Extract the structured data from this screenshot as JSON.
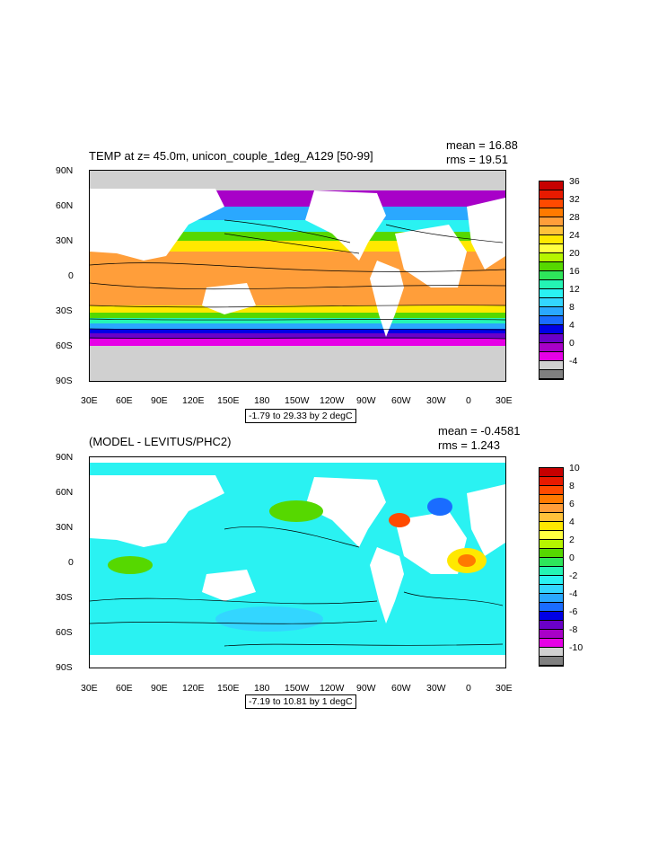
{
  "panels": [
    {
      "id": "temp",
      "title": "TEMP at z=  45.0m, unicon_couple_1deg_A129 [50-99]",
      "mean": "mean = 16.88",
      "rms": "rms = 19.51",
      "info": "-1.79 to 29.33 by 2 degC",
      "colorbar": {
        "labels": [
          "36",
          "32",
          "28",
          "24",
          "20",
          "16",
          "12",
          "8",
          "4",
          "0",
          "-4"
        ],
        "colors": [
          "#c70000",
          "#e81a00",
          "#ff4a00",
          "#ff7a00",
          "#ff9e3a",
          "#ffc23a",
          "#ffe800",
          "#ffff40",
          "#b6f500",
          "#56d800",
          "#2ee65a",
          "#24f5b4",
          "#2af2f2",
          "#33d6ff",
          "#2aa8ff",
          "#1a6cff",
          "#0000e6",
          "#6a00c8",
          "#a800c8",
          "#e600e6",
          "#d0d0d0",
          "#808080"
        ]
      },
      "icons": [
        "map-land-mask",
        "contour-lines"
      ]
    },
    {
      "id": "diff",
      "title": "(MODEL - LEVITUS/PHC2)",
      "mean": "mean = -0.4581",
      "rms": "rms = 1.243",
      "info": "-7.19 to 10.81 by 1 degC",
      "colorbar": {
        "labels": [
          "10",
          "8",
          "6",
          "4",
          "2",
          "0",
          "-2",
          "-4",
          "-6",
          "-8",
          "-10"
        ],
        "colors": [
          "#c70000",
          "#e81a00",
          "#ff4a00",
          "#ff7a00",
          "#ff9e3a",
          "#ffc23a",
          "#ffe800",
          "#ffff40",
          "#b6f500",
          "#56d800",
          "#2ee65a",
          "#24f5b4",
          "#2af2f2",
          "#33d6ff",
          "#2aa8ff",
          "#1a6cff",
          "#0000e6",
          "#6a00c8",
          "#a800c8",
          "#e600e6",
          "#d0d0d0",
          "#808080"
        ]
      },
      "icons": [
        "map-land-mask",
        "contour-lines"
      ]
    }
  ],
  "axes": {
    "lat_labels": [
      "90N",
      "60N",
      "30N",
      "0",
      "30S",
      "60S",
      "90S"
    ],
    "lon_labels": [
      "30E",
      "60E",
      "90E",
      "120E",
      "150E",
      "180",
      "150W",
      "120W",
      "90W",
      "60W",
      "30W",
      "0",
      "30E"
    ]
  }
}
